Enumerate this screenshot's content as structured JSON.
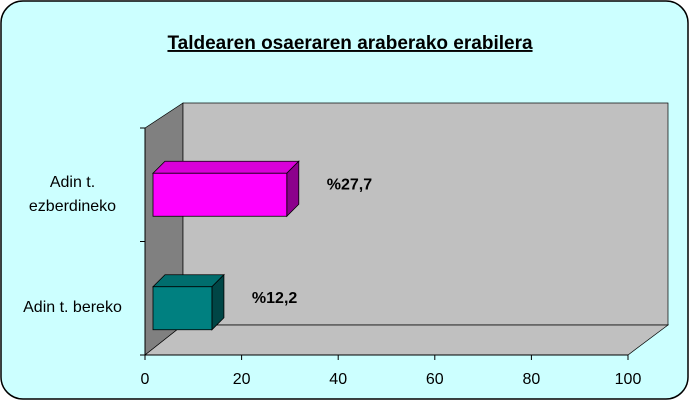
{
  "chart_data": {
    "type": "bar3d_horizontal",
    "title": "Taldearen osaeraren araberako erabilera",
    "categories": [
      "Adin t. ezberdineko",
      "Adin t. bereko"
    ],
    "values": [
      27.7,
      12.2
    ],
    "value_labels": [
      "%27,7",
      "%12,2"
    ],
    "colors": [
      "#ff00ff",
      "#008080"
    ],
    "xlim": [
      0,
      100
    ],
    "xticks": [
      0,
      20,
      40,
      60,
      80,
      100
    ]
  }
}
